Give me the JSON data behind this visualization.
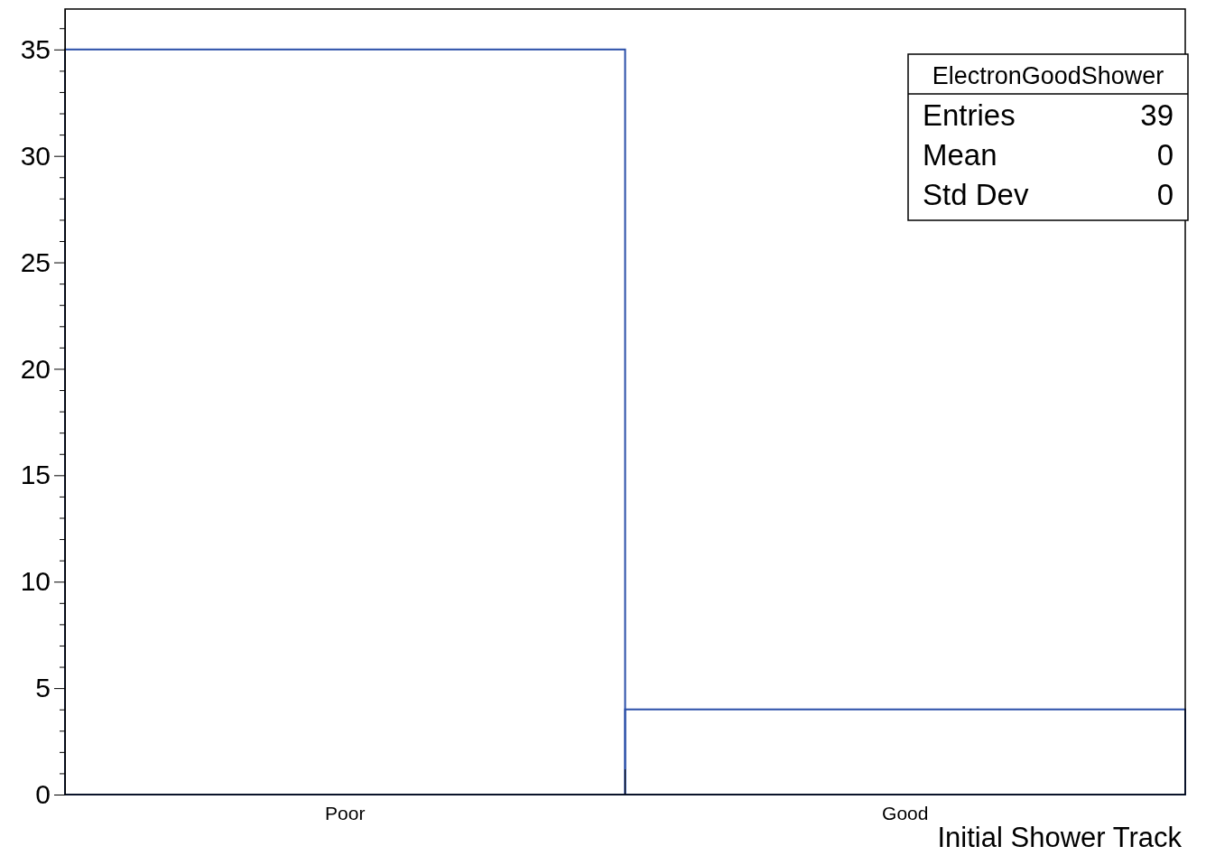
{
  "chart_data": {
    "type": "bar",
    "categories": [
      "Poor",
      "Good"
    ],
    "values": [
      35,
      4
    ],
    "color": "#2a4fa8",
    "xlabel": "Initial Shower Track",
    "ylim": [
      0,
      36.9
    ],
    "yticks": [
      0,
      {
        "value": 1,
        "label": null
      },
      {
        "value": 2,
        "label": null
      },
      {
        "value": 3,
        "label": null
      },
      {
        "value": 4,
        "label": null
      },
      5,
      {
        "value": 6,
        "label": null
      },
      {
        "value": 7,
        "label": null
      },
      {
        "value": 8,
        "label": null
      },
      {
        "value": 9,
        "label": null
      },
      10,
      {
        "value": 11,
        "label": null
      },
      {
        "value": 12,
        "label": null
      },
      {
        "value": 13,
        "label": null
      },
      {
        "value": 14,
        "label": null
      },
      15,
      {
        "value": 16,
        "label": null
      },
      {
        "value": 17,
        "label": null
      },
      {
        "value": 18,
        "label": null
      },
      {
        "value": 19,
        "label": null
      },
      20,
      {
        "value": 21,
        "label": null
      },
      {
        "value": 22,
        "label": null
      },
      {
        "value": 23,
        "label": null
      },
      {
        "value": 24,
        "label": null
      },
      25,
      {
        "value": 26,
        "label": null
      },
      {
        "value": 27,
        "label": null
      },
      {
        "value": 28,
        "label": null
      },
      {
        "value": 29,
        "label": null
      },
      30,
      {
        "value": 31,
        "label": null
      },
      {
        "value": 32,
        "label": null
      },
      {
        "value": 33,
        "label": null
      },
      {
        "value": 34,
        "label": null
      },
      35,
      {
        "value": 36,
        "label": null
      }
    ],
    "annotations": [
      "ElectronGoodShower",
      "Entries",
      "39",
      "Mean",
      "0",
      "Std Dev",
      "0"
    ]
  }
}
